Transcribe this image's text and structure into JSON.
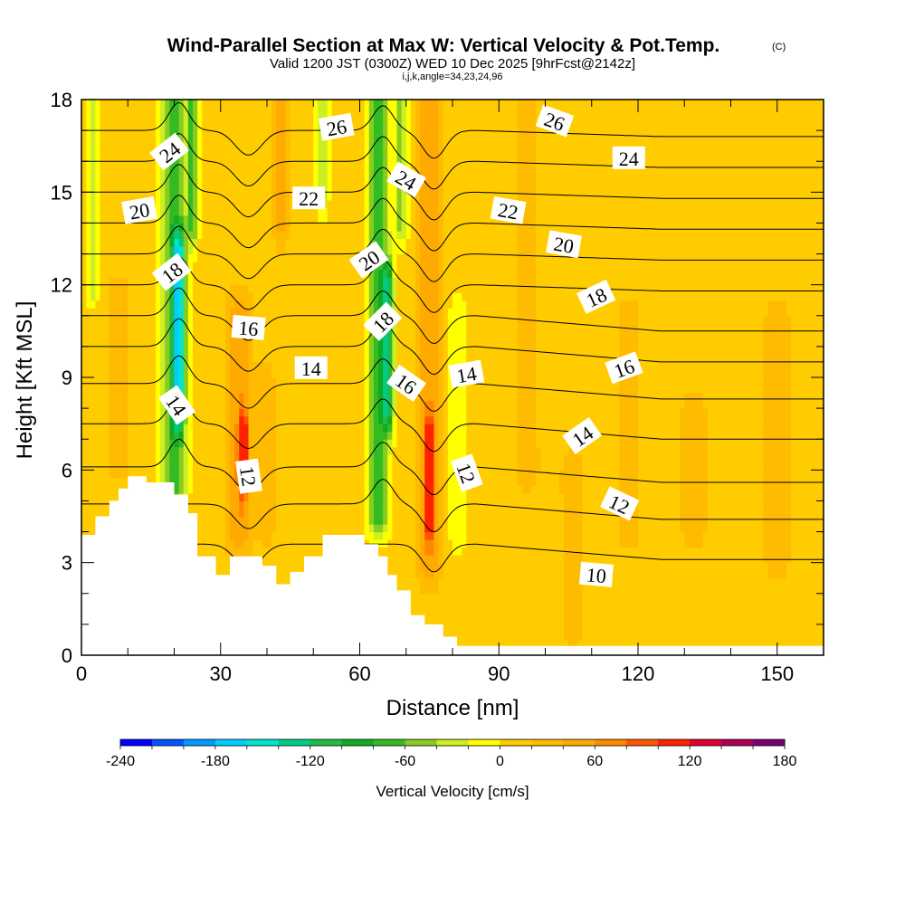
{
  "title": "Wind-Parallel Section at Max W: Vertical Velocity & Pot.Temp.",
  "title_mark": "(C)",
  "subtitle": "Valid 1200 JST (0300Z) WED 10 Dec 2025 [9hrFcst@2142z]",
  "subtitle2": "i,j,k,angle=34,23,24,96",
  "chart_data": {
    "type": "heatmap",
    "xlabel": "Distance [nm]",
    "ylabel": "Height [Kft MSL]",
    "xlim": [
      0,
      160
    ],
    "ylim": [
      0,
      18
    ],
    "x_ticks": [
      "0",
      "30",
      "60",
      "90",
      "120",
      "150"
    ],
    "x_tick_values": [
      0,
      30,
      60,
      90,
      120,
      150
    ],
    "y_ticks": [
      "0",
      "3",
      "6",
      "9",
      "12",
      "15",
      "18"
    ],
    "y_tick_values": [
      0,
      3,
      6,
      9,
      12,
      15,
      18
    ],
    "colorbar": {
      "label": "Vertical Velocity [cm/s]",
      "tick_labels": [
        "-240",
        "-180",
        "-120",
        "-60",
        "0",
        "60",
        "120",
        "180"
      ],
      "tick_values": [
        -240,
        -180,
        -120,
        -60,
        0,
        60,
        120,
        180
      ],
      "levels": [
        -240,
        -220,
        -200,
        -180,
        -160,
        -140,
        -120,
        -100,
        -80,
        -60,
        -40,
        -20,
        0,
        20,
        40,
        60,
        80,
        100,
        120,
        140,
        160,
        180
      ],
      "colors": [
        "#0000ff",
        "#0055ff",
        "#0099ff",
        "#00ccff",
        "#00e5cc",
        "#00cc88",
        "#22bb44",
        "#11aa22",
        "#33bb22",
        "#88cc22",
        "#ccee22",
        "#ffff00",
        "#ffcc00",
        "#ffbb00",
        "#ffaa00",
        "#ff8800",
        "#ff5500",
        "#ff2200",
        "#dd0033",
        "#aa0055",
        "#770077"
      ]
    },
    "terrain": [
      [
        0,
        3.9
      ],
      [
        3,
        3.9
      ],
      [
        3,
        4.5
      ],
      [
        6,
        4.5
      ],
      [
        6,
        5.0
      ],
      [
        8,
        5.0
      ],
      [
        8,
        5.4
      ],
      [
        10,
        5.4
      ],
      [
        10,
        5.8
      ],
      [
        14,
        5.8
      ],
      [
        14,
        5.6
      ],
      [
        20,
        5.6
      ],
      [
        20,
        5.2
      ],
      [
        23,
        5.2
      ],
      [
        23,
        4.6
      ],
      [
        25,
        4.6
      ],
      [
        25,
        3.2
      ],
      [
        29,
        3.2
      ],
      [
        29,
        2.6
      ],
      [
        32,
        2.6
      ],
      [
        32,
        3.2
      ],
      [
        39,
        3.2
      ],
      [
        39,
        2.9
      ],
      [
        42,
        2.9
      ],
      [
        42,
        2.3
      ],
      [
        45,
        2.3
      ],
      [
        45,
        2.7
      ],
      [
        48,
        2.7
      ],
      [
        48,
        3.2
      ],
      [
        52,
        3.2
      ],
      [
        52,
        3.9
      ],
      [
        61,
        3.9
      ],
      [
        61,
        3.6
      ],
      [
        64,
        3.6
      ],
      [
        64,
        3.2
      ],
      [
        66,
        3.2
      ],
      [
        66,
        2.6
      ],
      [
        68,
        2.6
      ],
      [
        68,
        2.1
      ],
      [
        71,
        2.1
      ],
      [
        71,
        1.3
      ],
      [
        74,
        1.3
      ],
      [
        74,
        1.0
      ],
      [
        78,
        1.0
      ],
      [
        78,
        0.6
      ],
      [
        81,
        0.6
      ],
      [
        81,
        0.3
      ],
      [
        160,
        0.3
      ]
    ],
    "w_field": {
      "background": 12,
      "features": [
        {
          "x": 2.5,
          "w": 1.4,
          "z0": 12,
          "z1": 18,
          "v": -30
        },
        {
          "x": 20,
          "w": 2.6,
          "z0": 5.5,
          "z1": 18,
          "v": -75
        },
        {
          "x": 21,
          "w": 1.3,
          "z0": 8,
          "z1": 13,
          "v": -105
        },
        {
          "x": 24,
          "w": 1.2,
          "z0": 14,
          "z1": 18,
          "v": -60
        },
        {
          "x": 34,
          "w": 2.5,
          "z0": 4,
          "z1": 11,
          "v": 55
        },
        {
          "x": 35,
          "w": 1,
          "z0": 5.8,
          "z1": 7.2,
          "v": 95
        },
        {
          "x": 43,
          "w": 1.5,
          "z0": 14,
          "z1": 18,
          "v": 50
        },
        {
          "x": 40,
          "w": 2.2,
          "z0": 4,
          "z1": 9,
          "v": 25
        },
        {
          "x": 52,
          "w": 1.4,
          "z0": 15,
          "z1": 18,
          "v": -35
        },
        {
          "x": 64,
          "w": 2.4,
          "z0": 4.5,
          "z1": 18,
          "v": -70
        },
        {
          "x": 66,
          "w": 1.2,
          "z0": 8,
          "z1": 12,
          "v": -100
        },
        {
          "x": 75,
          "w": 2.4,
          "z0": 3,
          "z1": 18,
          "v": 55
        },
        {
          "x": 75,
          "w": 1,
          "z0": 4.5,
          "z1": 7,
          "v": 95
        },
        {
          "x": 69,
          "w": 1.5,
          "z0": 14,
          "z1": 18,
          "v": -45
        },
        {
          "x": 81,
          "w": 2,
          "z0": 4,
          "z1": 11,
          "v": -15
        },
        {
          "x": 96,
          "w": 3,
          "z0": 6,
          "z1": 18,
          "v": 28
        },
        {
          "x": 106,
          "w": 3,
          "z0": 1,
          "z1": 6,
          "v": 28
        },
        {
          "x": 118,
          "w": 3,
          "z0": 4,
          "z1": 11,
          "v": 26
        },
        {
          "x": 132,
          "w": 4,
          "z0": 4,
          "z1": 8,
          "v": 24
        },
        {
          "x": 150,
          "w": 4,
          "z0": 3,
          "z1": 11,
          "v": 24
        },
        {
          "x": 8,
          "w": 4,
          "z0": 6,
          "z1": 12,
          "v": 22
        }
      ]
    },
    "theta_contours": [
      {
        "z0": 3.6,
        "amp": [
          0,
          0,
          0,
          0,
          0,
          0,
          0
        ]
      },
      {
        "z0": 4.9,
        "amp": [
          0,
          0,
          0,
          0,
          0,
          0,
          0
        ]
      },
      {
        "z0": 6.1,
        "amp": [
          0,
          0,
          0,
          0,
          0,
          0,
          0
        ]
      },
      {
        "z0": 7.5,
        "amp": [
          0,
          0,
          0,
          0,
          0,
          0,
          0
        ]
      },
      {
        "z0": 8.8,
        "amp": [
          0,
          0,
          0,
          0,
          0,
          0,
          0
        ]
      },
      {
        "z0": 10.0,
        "amp": [
          0,
          0,
          0,
          0,
          0,
          0,
          0
        ]
      },
      {
        "z0": 11.0,
        "amp": [
          0,
          0,
          0,
          0,
          0,
          0,
          0
        ]
      },
      {
        "z0": 12.0,
        "amp": [
          0,
          0,
          0,
          0,
          0,
          0,
          0
        ]
      },
      {
        "z0": 13.0,
        "amp": [
          0,
          0,
          0,
          0,
          0,
          0,
          0
        ]
      },
      {
        "z0": 14.0,
        "amp": [
          0,
          0,
          0,
          0,
          0,
          0,
          0
        ]
      },
      {
        "z0": 15.0,
        "amp": [
          0,
          0,
          0,
          0,
          0,
          0,
          0
        ]
      },
      {
        "z0": 16.0,
        "amp": [
          0,
          0,
          0,
          0,
          0,
          0,
          0
        ]
      },
      {
        "z0": 17.0,
        "amp": [
          0,
          0,
          0,
          0,
          0,
          0,
          0
        ]
      }
    ],
    "contour_labels": [
      {
        "text": "24",
        "x": 19,
        "y": 16.3,
        "rot": 38
      },
      {
        "text": "20",
        "x": 12.5,
        "y": 14.4,
        "rot": 10
      },
      {
        "text": "18",
        "x": 19.5,
        "y": 12.4,
        "rot": 38
      },
      {
        "text": "14",
        "x": 20.5,
        "y": 8.1,
        "rot": -55
      },
      {
        "text": "26",
        "x": 55,
        "y": 17.1,
        "rot": 10
      },
      {
        "text": "22",
        "x": 49,
        "y": 14.8,
        "rot": 0
      },
      {
        "text": "16",
        "x": 36,
        "y": 10.6,
        "rot": -5
      },
      {
        "text": "14",
        "x": 49.5,
        "y": 9.3,
        "rot": 0
      },
      {
        "text": "12",
        "x": 36,
        "y": 5.8,
        "rot": -82
      },
      {
        "text": "24",
        "x": 70,
        "y": 15.4,
        "rot": -30
      },
      {
        "text": "20",
        "x": 62,
        "y": 12.8,
        "rot": 35
      },
      {
        "text": "18",
        "x": 65,
        "y": 10.8,
        "rot": 45
      },
      {
        "text": "16",
        "x": 70,
        "y": 8.8,
        "rot": -35
      },
      {
        "text": "14",
        "x": 83,
        "y": 9.1,
        "rot": 10
      },
      {
        "text": "12",
        "x": 83,
        "y": 5.9,
        "rot": -70
      },
      {
        "text": "26",
        "x": 102,
        "y": 17.3,
        "rot": -20
      },
      {
        "text": "24",
        "x": 118,
        "y": 16.1,
        "rot": 0
      },
      {
        "text": "22",
        "x": 92,
        "y": 14.4,
        "rot": -10
      },
      {
        "text": "20",
        "x": 104,
        "y": 13.3,
        "rot": -10
      },
      {
        "text": "18",
        "x": 111,
        "y": 11.6,
        "rot": 25
      },
      {
        "text": "16",
        "x": 117,
        "y": 9.3,
        "rot": 20
      },
      {
        "text": "14",
        "x": 108,
        "y": 7.1,
        "rot": 35
      },
      {
        "text": "12",
        "x": 116,
        "y": 4.9,
        "rot": -25
      },
      {
        "text": "10",
        "x": 111,
        "y": 2.6,
        "rot": -5
      }
    ]
  }
}
